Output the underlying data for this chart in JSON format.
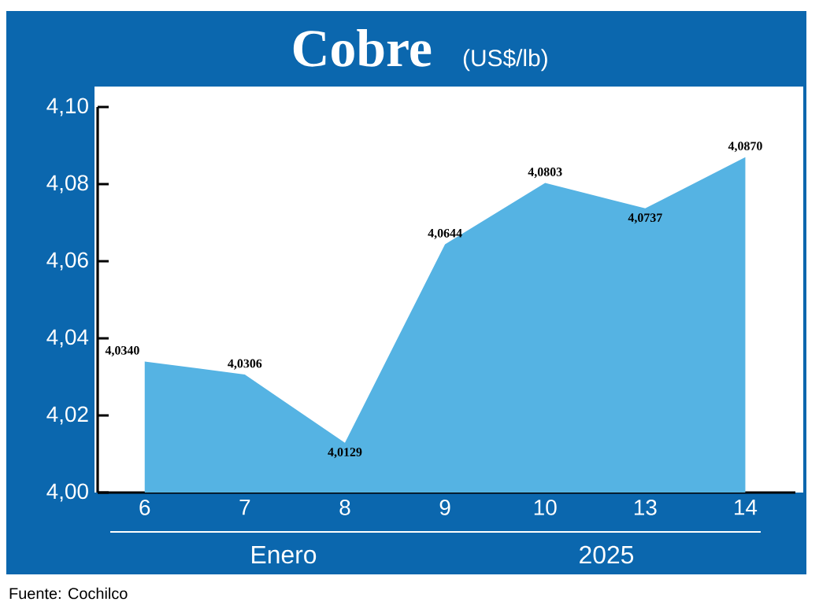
{
  "chart_data": {
    "type": "area",
    "title": "Cobre",
    "subtitle": "(US$/lb)",
    "xlabel": "Enero",
    "annotations": [
      "2025",
      "Fuente: Cochilco"
    ],
    "categories": [
      "6",
      "7",
      "8",
      "9",
      "10",
      "13",
      "14"
    ],
    "values": [
      4.034,
      4.0306,
      4.0129,
      4.0644,
      4.0803,
      4.0737,
      4.087
    ],
    "value_labels": [
      "4,0340",
      "4,0306",
      "4,0129",
      "4,0644",
      "4,0803",
      "4,0737",
      "4,0870"
    ],
    "color": "#55b3e3",
    "ylim": [
      4.0,
      4.1
    ],
    "yticks": [
      {
        "value": 4.0,
        "label": "4,00"
      },
      {
        "value": 4.02,
        "label": "4,02"
      },
      {
        "value": 4.04,
        "label": "4,04"
      },
      {
        "value": 4.06,
        "label": "4,06"
      },
      {
        "value": 4.08,
        "label": "4,08"
      },
      {
        "value": 4.1,
        "label": "4,10"
      }
    ]
  }
}
